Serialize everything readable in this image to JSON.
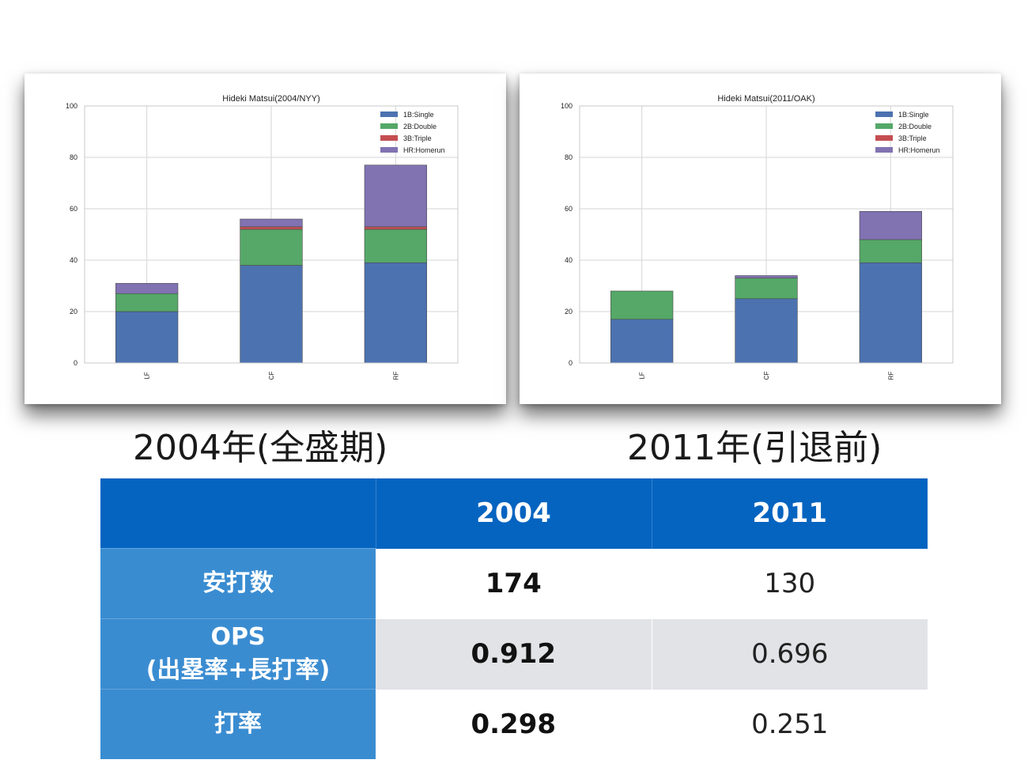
{
  "chart_data": [
    {
      "type": "bar",
      "stacked": true,
      "title": "Hideki Matsui(2004/NYY)",
      "categories": [
        "LF",
        "CF",
        "RF"
      ],
      "series": [
        {
          "name": "1B:Single",
          "values": [
            20,
            38,
            39
          ],
          "color": "#4c72b0"
        },
        {
          "name": "2B:Double",
          "values": [
            7,
            14,
            13
          ],
          "color": "#55a868"
        },
        {
          "name": "3B:Triple",
          "values": [
            0,
            1,
            1
          ],
          "color": "#c44e52"
        },
        {
          "name": "HR:Homerun",
          "values": [
            4,
            3,
            24
          ],
          "color": "#8172b2"
        }
      ],
      "ylim": [
        0,
        100
      ],
      "yticks": [
        "0",
        "20",
        "40",
        "60",
        "80",
        "100"
      ],
      "grid": true,
      "legend": "top-right"
    },
    {
      "type": "bar",
      "stacked": true,
      "title": "Hideki Matsui(2011/OAK)",
      "categories": [
        "LF",
        "CF",
        "RF"
      ],
      "series": [
        {
          "name": "1B:Single",
          "values": [
            17,
            25,
            39
          ],
          "color": "#4c72b0"
        },
        {
          "name": "2B:Double",
          "values": [
            11,
            8,
            9
          ],
          "color": "#55a868"
        },
        {
          "name": "3B:Triple",
          "values": [
            0,
            0,
            0
          ],
          "color": "#c44e52"
        },
        {
          "name": "HR:Homerun",
          "values": [
            0,
            1,
            11
          ],
          "color": "#8172b2"
        }
      ],
      "ylim": [
        0,
        100
      ],
      "yticks": [
        "0",
        "20",
        "40",
        "60",
        "80",
        "100"
      ],
      "grid": true,
      "legend": "top-right"
    }
  ],
  "captions": {
    "left": "2004年(全盛期)",
    "right": "2011年(引退前)"
  },
  "table": {
    "header": {
      "blank": "",
      "col1": "2004",
      "col2": "2011"
    },
    "rows": [
      {
        "label": "安打数",
        "v2004": "174",
        "v2011": "130"
      },
      {
        "label_line1": "OPS",
        "label_line2": "(出塁率+長打率)",
        "v2004": "0.912",
        "v2011": "0.696"
      },
      {
        "label": "打率",
        "v2004": "0.298",
        "v2011": "0.251"
      }
    ]
  }
}
